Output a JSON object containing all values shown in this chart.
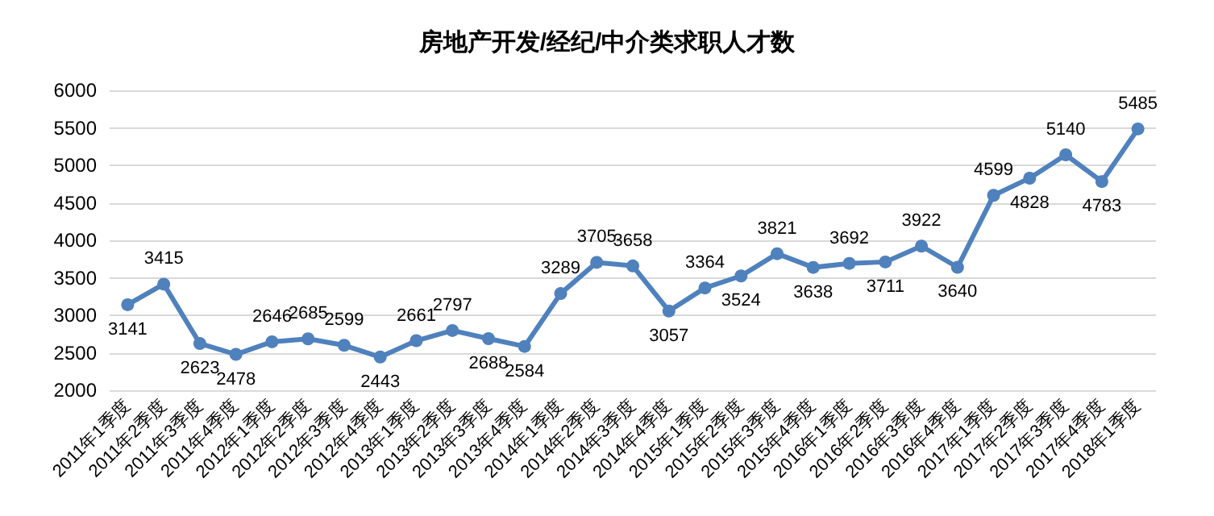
{
  "chart_data": {
    "type": "line",
    "title": "房地产开发/经纪/中介类求职人才数",
    "categories": [
      "2011年1季度",
      "2011年2季度",
      "2011年3季度",
      "2011年4季度",
      "2012年1季度",
      "2012年2季度",
      "2012年3季度",
      "2012年4季度",
      "2013年1季度",
      "2013年2季度",
      "2013年3季度",
      "2013年4季度",
      "2014年1季度",
      "2014年2季度",
      "2014年3季度",
      "2014年4季度",
      "2015年1季度",
      "2015年2季度",
      "2015年3季度",
      "2015年4季度",
      "2016年1季度",
      "2016年2季度",
      "2016年3季度",
      "2016年4季度",
      "2017年1季度",
      "2017年2季度",
      "2017年3季度",
      "2017年4季度",
      "2018年1季度"
    ],
    "series": [
      {
        "color": "#4f81bd",
        "values": [
          3141,
          3415,
          2623,
          2478,
          2646,
          2685,
          2599,
          2443,
          2661,
          2797,
          2688,
          2584,
          3289,
          3705,
          3658,
          3057,
          3364,
          3524,
          3821,
          3638,
          3692,
          3711,
          3922,
          3640,
          4599,
          4828,
          5140,
          4783,
          5485
        ]
      }
    ],
    "ylim": [
      2000,
      6000
    ],
    "yticks": [
      2000,
      2500,
      3000,
      3500,
      4000,
      4500,
      5000,
      5500,
      6000
    ],
    "grid": "y",
    "marker": "circle",
    "line_style": "solid",
    "data_labels": true
  }
}
